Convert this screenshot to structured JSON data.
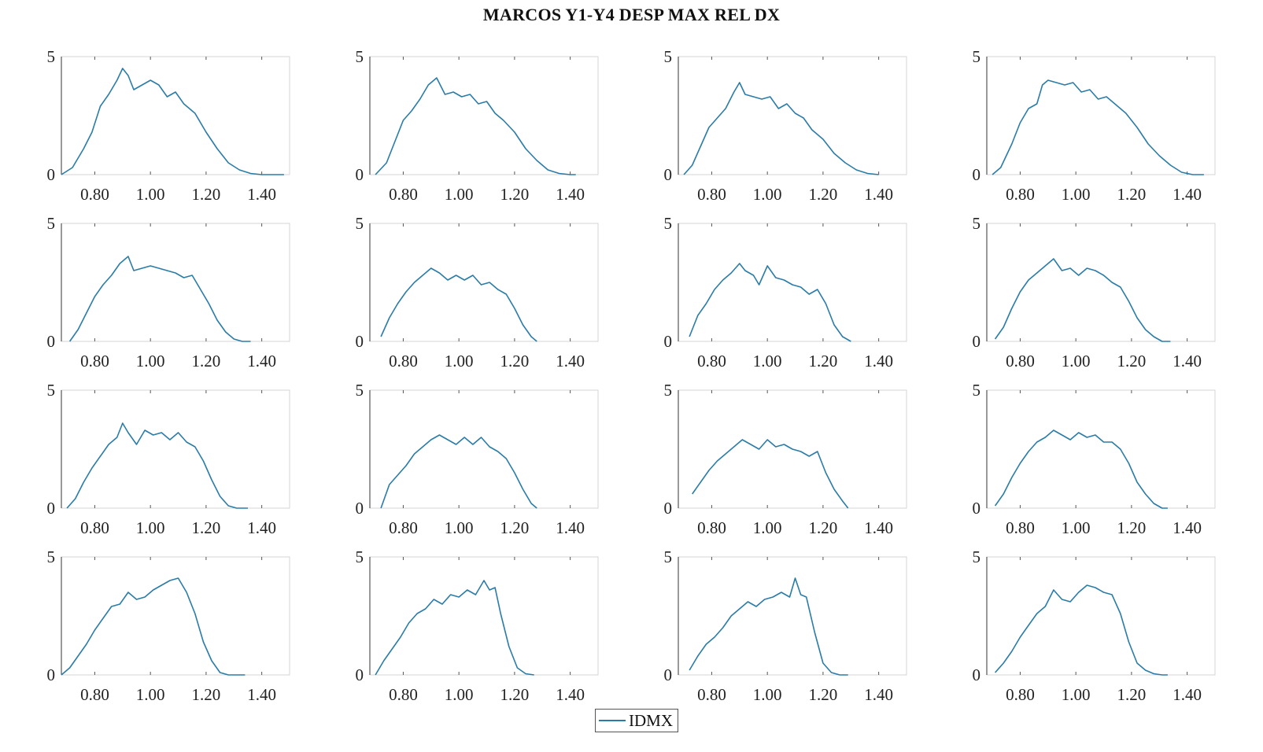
{
  "chart_data": {
    "type": "line",
    "title": "MARCOS Y1-Y4 DESP MAX REL DX",
    "legend": {
      "placement": "bottom-center",
      "entries": [
        "IDMX"
      ]
    },
    "grid": "off",
    "layout": "4x4 small multiples",
    "x_ticks": [
      "0.80",
      "1.00",
      "1.20",
      "1.40"
    ],
    "x_tick_values": [
      0.8,
      1.0,
      1.2,
      1.4
    ],
    "y_ticks": [
      "0",
      "5"
    ],
    "y_tick_values": [
      0,
      5
    ],
    "xlim": [
      0.68,
      1.5
    ],
    "ylim": [
      0,
      5
    ],
    "series_name": "IDMX",
    "color": "#2a7ca8",
    "panels": [
      {
        "x": [
          0.68,
          0.72,
          0.76,
          0.79,
          0.82,
          0.85,
          0.88,
          0.9,
          0.92,
          0.94,
          0.97,
          1.0,
          1.03,
          1.06,
          1.09,
          1.12,
          1.16,
          1.2,
          1.24,
          1.28,
          1.32,
          1.36,
          1.4,
          1.48
        ],
        "y": [
          0,
          0.3,
          1.1,
          1.8,
          2.9,
          3.4,
          4.0,
          4.5,
          4.2,
          3.6,
          3.8,
          4.0,
          3.8,
          3.3,
          3.5,
          3.0,
          2.6,
          1.8,
          1.1,
          0.5,
          0.2,
          0.05,
          0,
          0
        ]
      },
      {
        "x": [
          0.7,
          0.74,
          0.77,
          0.8,
          0.83,
          0.86,
          0.89,
          0.92,
          0.95,
          0.98,
          1.01,
          1.04,
          1.07,
          1.1,
          1.13,
          1.16,
          1.2,
          1.24,
          1.28,
          1.32,
          1.36,
          1.4,
          1.42
        ],
        "y": [
          0,
          0.5,
          1.4,
          2.3,
          2.7,
          3.2,
          3.8,
          4.1,
          3.4,
          3.5,
          3.3,
          3.4,
          3.0,
          3.1,
          2.6,
          2.3,
          1.8,
          1.1,
          0.6,
          0.2,
          0.05,
          0,
          0
        ]
      },
      {
        "x": [
          0.7,
          0.73,
          0.76,
          0.79,
          0.82,
          0.85,
          0.88,
          0.9,
          0.92,
          0.95,
          0.98,
          1.01,
          1.04,
          1.07,
          1.1,
          1.13,
          1.16,
          1.2,
          1.24,
          1.28,
          1.32,
          1.36,
          1.4
        ],
        "y": [
          0,
          0.4,
          1.2,
          2.0,
          2.4,
          2.8,
          3.5,
          3.9,
          3.4,
          3.3,
          3.2,
          3.3,
          2.8,
          3.0,
          2.6,
          2.4,
          1.9,
          1.5,
          0.9,
          0.5,
          0.2,
          0.05,
          0
        ]
      },
      {
        "x": [
          0.7,
          0.73,
          0.77,
          0.8,
          0.83,
          0.86,
          0.88,
          0.9,
          0.93,
          0.96,
          0.99,
          1.02,
          1.05,
          1.08,
          1.11,
          1.14,
          1.18,
          1.22,
          1.26,
          1.3,
          1.34,
          1.38,
          1.42,
          1.46
        ],
        "y": [
          0,
          0.3,
          1.3,
          2.2,
          2.8,
          3.0,
          3.8,
          4.0,
          3.9,
          3.8,
          3.9,
          3.5,
          3.6,
          3.2,
          3.3,
          3.0,
          2.6,
          2.0,
          1.3,
          0.8,
          0.4,
          0.1,
          0,
          0
        ]
      },
      {
        "x": [
          0.71,
          0.74,
          0.77,
          0.8,
          0.83,
          0.86,
          0.89,
          0.92,
          0.94,
          0.97,
          1.0,
          1.03,
          1.06,
          1.09,
          1.12,
          1.15,
          1.18,
          1.21,
          1.24,
          1.27,
          1.3,
          1.33,
          1.36
        ],
        "y": [
          0,
          0.5,
          1.2,
          1.9,
          2.4,
          2.8,
          3.3,
          3.6,
          3.0,
          3.1,
          3.2,
          3.1,
          3.0,
          2.9,
          2.7,
          2.8,
          2.2,
          1.6,
          0.9,
          0.4,
          0.1,
          0,
          0
        ]
      },
      {
        "x": [
          0.72,
          0.75,
          0.78,
          0.81,
          0.84,
          0.87,
          0.9,
          0.93,
          0.96,
          0.99,
          1.02,
          1.05,
          1.08,
          1.11,
          1.14,
          1.17,
          1.2,
          1.23,
          1.26,
          1.28
        ],
        "y": [
          0.2,
          1.0,
          1.6,
          2.1,
          2.5,
          2.8,
          3.1,
          2.9,
          2.6,
          2.8,
          2.6,
          2.8,
          2.4,
          2.5,
          2.2,
          2.0,
          1.4,
          0.7,
          0.2,
          0
        ]
      },
      {
        "x": [
          0.72,
          0.75,
          0.78,
          0.81,
          0.84,
          0.87,
          0.9,
          0.92,
          0.95,
          0.97,
          1.0,
          1.03,
          1.06,
          1.09,
          1.12,
          1.15,
          1.18,
          1.21,
          1.24,
          1.27,
          1.3
        ],
        "y": [
          0.2,
          1.1,
          1.6,
          2.2,
          2.6,
          2.9,
          3.3,
          3.0,
          2.8,
          2.4,
          3.2,
          2.7,
          2.6,
          2.4,
          2.3,
          2.0,
          2.2,
          1.6,
          0.7,
          0.2,
          0
        ]
      },
      {
        "x": [
          0.71,
          0.74,
          0.77,
          0.8,
          0.83,
          0.86,
          0.89,
          0.92,
          0.95,
          0.98,
          1.01,
          1.04,
          1.07,
          1.1,
          1.13,
          1.16,
          1.19,
          1.22,
          1.25,
          1.28,
          1.31,
          1.34
        ],
        "y": [
          0.1,
          0.6,
          1.4,
          2.1,
          2.6,
          2.9,
          3.2,
          3.5,
          3.0,
          3.1,
          2.8,
          3.1,
          3.0,
          2.8,
          2.5,
          2.3,
          1.7,
          1.0,
          0.5,
          0.2,
          0,
          0
        ]
      },
      {
        "x": [
          0.7,
          0.73,
          0.76,
          0.79,
          0.82,
          0.85,
          0.88,
          0.9,
          0.92,
          0.95,
          0.98,
          1.01,
          1.04,
          1.07,
          1.1,
          1.13,
          1.16,
          1.19,
          1.22,
          1.25,
          1.28,
          1.31,
          1.35
        ],
        "y": [
          0,
          0.4,
          1.1,
          1.7,
          2.2,
          2.7,
          3.0,
          3.6,
          3.2,
          2.7,
          3.3,
          3.1,
          3.2,
          2.9,
          3.2,
          2.8,
          2.6,
          2.0,
          1.2,
          0.5,
          0.1,
          0,
          0
        ]
      },
      {
        "x": [
          0.72,
          0.75,
          0.78,
          0.81,
          0.84,
          0.87,
          0.9,
          0.93,
          0.96,
          0.99,
          1.02,
          1.05,
          1.08,
          1.11,
          1.14,
          1.17,
          1.2,
          1.23,
          1.26,
          1.28
        ],
        "y": [
          0,
          1.0,
          1.4,
          1.8,
          2.3,
          2.6,
          2.9,
          3.1,
          2.9,
          2.7,
          3.0,
          2.7,
          3.0,
          2.6,
          2.4,
          2.1,
          1.5,
          0.8,
          0.2,
          0
        ]
      },
      {
        "x": [
          0.73,
          0.76,
          0.79,
          0.82,
          0.85,
          0.88,
          0.91,
          0.94,
          0.97,
          1.0,
          1.03,
          1.06,
          1.09,
          1.12,
          1.15,
          1.18,
          1.21,
          1.24,
          1.27,
          1.29
        ],
        "y": [
          0.6,
          1.1,
          1.6,
          2.0,
          2.3,
          2.6,
          2.9,
          2.7,
          2.5,
          2.9,
          2.6,
          2.7,
          2.5,
          2.4,
          2.2,
          2.4,
          1.5,
          0.8,
          0.3,
          0
        ]
      },
      {
        "x": [
          0.71,
          0.74,
          0.77,
          0.8,
          0.83,
          0.86,
          0.89,
          0.92,
          0.95,
          0.98,
          1.01,
          1.04,
          1.07,
          1.1,
          1.13,
          1.16,
          1.19,
          1.22,
          1.25,
          1.28,
          1.31,
          1.33
        ],
        "y": [
          0.1,
          0.6,
          1.3,
          1.9,
          2.4,
          2.8,
          3.0,
          3.3,
          3.1,
          2.9,
          3.2,
          3.0,
          3.1,
          2.8,
          2.8,
          2.5,
          1.9,
          1.1,
          0.6,
          0.2,
          0,
          0
        ]
      },
      {
        "x": [
          0.68,
          0.71,
          0.74,
          0.77,
          0.8,
          0.83,
          0.86,
          0.89,
          0.92,
          0.95,
          0.98,
          1.01,
          1.04,
          1.07,
          1.1,
          1.13,
          1.16,
          1.19,
          1.22,
          1.25,
          1.28,
          1.31,
          1.34
        ],
        "y": [
          0,
          0.3,
          0.8,
          1.3,
          1.9,
          2.4,
          2.9,
          3.0,
          3.5,
          3.2,
          3.3,
          3.6,
          3.8,
          4.0,
          4.1,
          3.5,
          2.6,
          1.4,
          0.6,
          0.1,
          0,
          0,
          0
        ]
      },
      {
        "x": [
          0.7,
          0.73,
          0.76,
          0.79,
          0.82,
          0.85,
          0.88,
          0.91,
          0.94,
          0.97,
          1.0,
          1.03,
          1.06,
          1.09,
          1.11,
          1.13,
          1.15,
          1.18,
          1.21,
          1.24,
          1.27
        ],
        "y": [
          0,
          0.6,
          1.1,
          1.6,
          2.2,
          2.6,
          2.8,
          3.2,
          3.0,
          3.4,
          3.3,
          3.6,
          3.4,
          4.0,
          3.6,
          3.7,
          2.6,
          1.2,
          0.3,
          0.05,
          0
        ]
      },
      {
        "x": [
          0.72,
          0.75,
          0.78,
          0.81,
          0.84,
          0.87,
          0.9,
          0.93,
          0.96,
          0.99,
          1.02,
          1.05,
          1.08,
          1.1,
          1.12,
          1.14,
          1.17,
          1.2,
          1.23,
          1.26,
          1.29
        ],
        "y": [
          0.2,
          0.8,
          1.3,
          1.6,
          2.0,
          2.5,
          2.8,
          3.1,
          2.9,
          3.2,
          3.3,
          3.5,
          3.3,
          4.1,
          3.4,
          3.3,
          1.8,
          0.5,
          0.1,
          0,
          0
        ]
      },
      {
        "x": [
          0.71,
          0.74,
          0.77,
          0.8,
          0.83,
          0.86,
          0.89,
          0.92,
          0.95,
          0.98,
          1.01,
          1.04,
          1.07,
          1.1,
          1.13,
          1.16,
          1.19,
          1.22,
          1.25,
          1.28,
          1.31,
          1.33
        ],
        "y": [
          0.1,
          0.5,
          1.0,
          1.6,
          2.1,
          2.6,
          2.9,
          3.6,
          3.2,
          3.1,
          3.5,
          3.8,
          3.7,
          3.5,
          3.4,
          2.6,
          1.4,
          0.5,
          0.2,
          0.05,
          0,
          0
        ]
      }
    ]
  }
}
